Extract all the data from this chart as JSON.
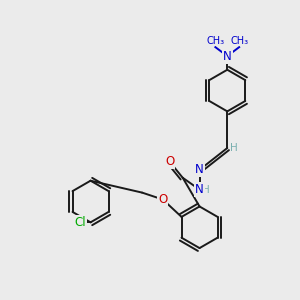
{
  "background_color": "#ebebeb",
  "bond_color": "#1a1a1a",
  "bond_width": 1.4,
  "atom_colors": {
    "N": "#0000cc",
    "O": "#cc0000",
    "Cl": "#00aa00",
    "H": "#7ab0b0",
    "default": "#1a1a1a"
  },
  "font_size_atom": 8.5,
  "font_size_small": 7.5
}
